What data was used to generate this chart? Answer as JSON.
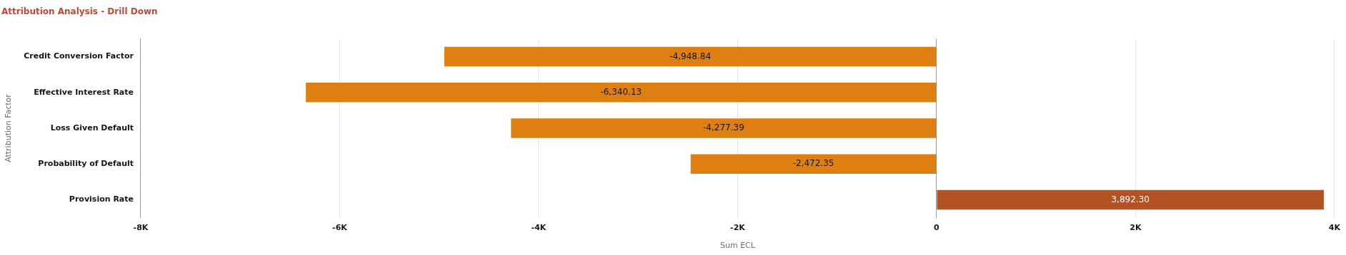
{
  "chart_data": {
    "type": "bar",
    "title": "Attribution Analysis - Drill Down",
    "orientation": "horizontal",
    "xlabel": "Sum ECL",
    "ylabel": "Attribution Factor",
    "categories": [
      "Credit Conversion Factor",
      "Effective Interest Rate",
      "Loss Given Default",
      "Probability of Default",
      "Provision Rate"
    ],
    "values": [
      -4948.84,
      -6340.13,
      -4277.39,
      -2472.35,
      3892.3
    ],
    "colors": [
      "#df7f12",
      "#df7f12",
      "#df7f12",
      "#df7f12",
      "#b25225"
    ],
    "value_labels": [
      "-4,948.84",
      "-6,340.13",
      "-4,277.39",
      "-2,472.35",
      "3,892.30"
    ],
    "xlim": [
      -8000,
      4000
    ],
    "xticks": [
      {
        "value": -8000,
        "label": "-8K"
      },
      {
        "value": -6000,
        "label": "-6K"
      },
      {
        "value": -4000,
        "label": "-4K"
      },
      {
        "value": -2000,
        "label": "-2K"
      },
      0,
      {
        "value": 2000,
        "label": "2K"
      },
      {
        "value": 4000,
        "label": "4K"
      }
    ],
    "grid": "x",
    "legend": false
  }
}
